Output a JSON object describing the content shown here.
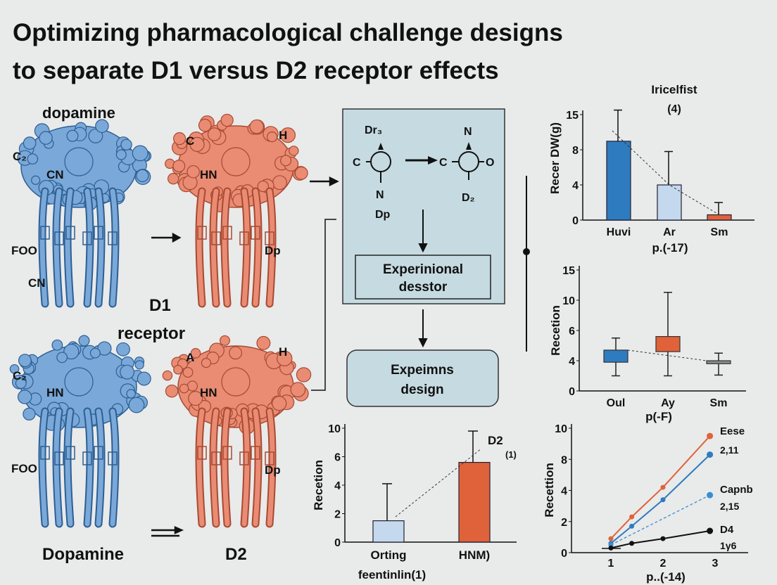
{
  "title": {
    "line1": "Optimizing pharmacological challenge designs",
    "line2": "to separate D1 versus D2 receptor effects"
  },
  "left": {
    "top_label": "dopamine",
    "d1": {
      "label1": "D1",
      "label2": "receptor"
    },
    "bottom_left_label": "Dopamine",
    "bottom_right_label": "D2",
    "blue_top_labels": [
      "C₂",
      "CN",
      "FOO",
      "CΝ"
    ],
    "red_top_labels": [
      "C",
      "H",
      "HN",
      "Dp"
    ],
    "blue_bottom_labels": [
      "C₂",
      "HN",
      "FOO"
    ],
    "red_bottom_labels": [
      "A",
      "H",
      "HN",
      "Dp"
    ]
  },
  "center": {
    "left_molecule": {
      "top": "Dr₃",
      "left": "C",
      "bottom": "N",
      "below": "Dp"
    },
    "right_molecule": {
      "top": "N",
      "left": "C",
      "right": "O",
      "bottom": "D₂"
    },
    "experimental_box": {
      "line1": "Experinional",
      "line2": "desstor"
    },
    "design_box": {
      "line1": "Expeimns",
      "line2": "design"
    }
  },
  "colors": {
    "blue": "#2f7bbf",
    "light_blue": "#c4d9ee",
    "orange": "#e0623a",
    "gray": "#8a8a8a",
    "panel": "#c6dbe1",
    "receptor_blue": "#7aa8d8",
    "receptor_red": "#e98c73"
  },
  "chart_data": [
    {
      "type": "bar",
      "title": "Iricelfist\n(4)",
      "title_line1": "Iricelfist",
      "title_line2": "(4)",
      "ylabel": "Recer DW(g)",
      "xlabel": "p.(-17)",
      "yticks": [
        "0",
        "4",
        "8",
        "15"
      ],
      "categories": [
        "Huvi",
        "Ar",
        "Sm"
      ],
      "values": [
        9.7,
        4,
        0.6
      ],
      "errors_upper": [
        15.9,
        7.8,
        2
      ],
      "colors": [
        "#2f7bbf",
        "#c4d9ee",
        "#e0623a"
      ],
      "trend_line": "dashed"
    },
    {
      "type": "box",
      "ylabel": "Recetion",
      "xlabel": "p(-F)",
      "yticks": [
        "0",
        "4",
        "6",
        "10",
        "15"
      ],
      "categories": [
        "Oul",
        "Ay",
        "Sm"
      ],
      "boxes": [
        {
          "min": 2.0,
          "q1": 3.8,
          "q3": 4.7,
          "max": 5.5
        },
        {
          "min": 2.0,
          "q1": 4.6,
          "q3": 5.6,
          "max": 11.3
        },
        {
          "min": 2.1,
          "q1": 3.6,
          "q3": 4.0,
          "max": 4.5
        }
      ],
      "colors": [
        "#2f7bbf",
        "#e0623a",
        "#8a8a8a"
      ]
    },
    {
      "type": "bar",
      "ylabel": "Recetion",
      "xlabel": "feentinlin(1)",
      "yticks": [
        "0",
        "2",
        "4",
        "6",
        "10"
      ],
      "categories": [
        "Orting",
        "HNM)"
      ],
      "values": [
        1.5,
        5.6
      ],
      "errors_upper": [
        4.1,
        9.6
      ],
      "colors": [
        "#c4d9ee",
        "#e0623a"
      ],
      "annotation": {
        "label": "D2",
        "sub": "(1)"
      }
    },
    {
      "type": "line",
      "ylabel": "Recettion",
      "xlabel": "p..(-14)",
      "yticks": [
        "0",
        "2",
        "4",
        "8",
        "10"
      ],
      "xticks": [
        "1",
        "2",
        "3"
      ],
      "series": [
        {
          "name": "Eese",
          "value_label": "2,11",
          "color": "#e0623a",
          "style": "solid",
          "x": [
            1,
            1.4,
            2,
            2.9
          ],
          "y": [
            0.9,
            2.3,
            4.4,
            9.5
          ]
        },
        {
          "name": "",
          "color": "#2f7bbf",
          "style": "solid",
          "x": [
            1,
            1.4,
            2,
            2.9
          ],
          "y": [
            0.6,
            1.7,
            3.4,
            8.3
          ]
        },
        {
          "name": "Capnb",
          "value_label": "2,15",
          "color": "#3a8fd0",
          "style": "dashed",
          "x": [
            1,
            2.9
          ],
          "y": [
            0.5,
            3.7
          ]
        },
        {
          "name": "D4",
          "value_label": "1γ6",
          "color": "#111111",
          "style": "solid",
          "x": [
            1,
            1.4,
            2,
            2.9
          ],
          "y": [
            0.3,
            0.6,
            0.9,
            1.4
          ]
        }
      ]
    }
  ]
}
